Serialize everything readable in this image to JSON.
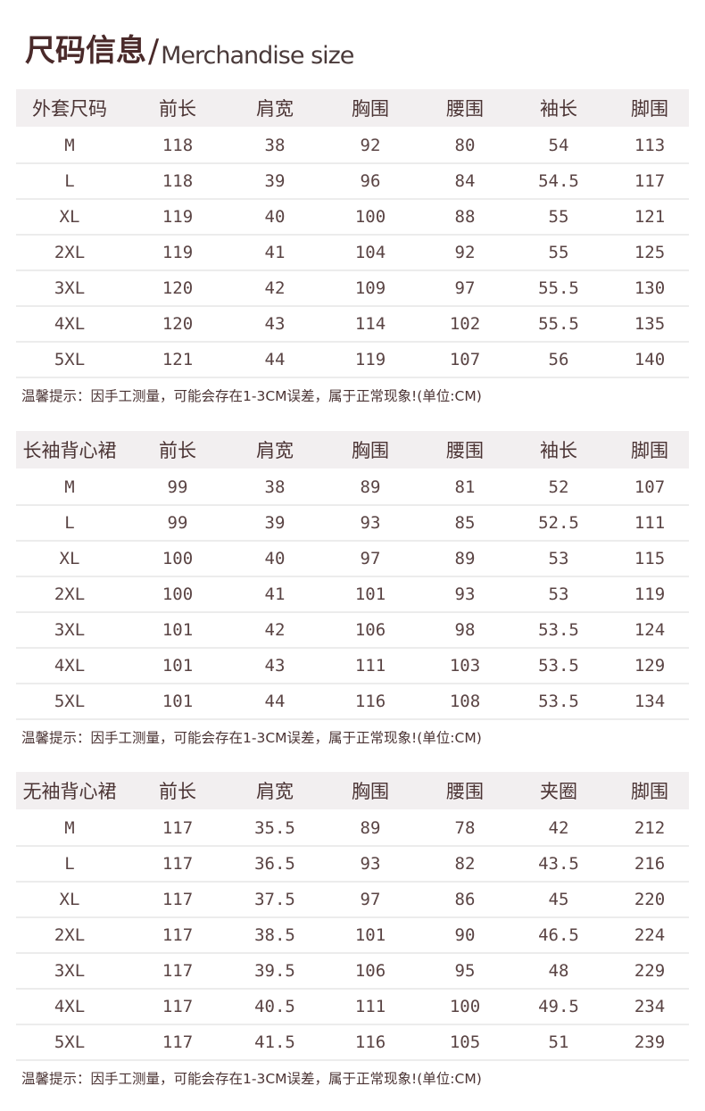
{
  "title": {
    "cn": "尺码信息",
    "slash": "/",
    "en": "Merchandise size"
  },
  "tables": [
    {
      "headers": [
        "外套尺码",
        "前长",
        "肩宽",
        "胸围",
        "腰围",
        "袖长",
        "脚围"
      ],
      "rows": [
        [
          "M",
          "118",
          "38",
          "92",
          "80",
          "54",
          "113"
        ],
        [
          "L",
          "118",
          "39",
          "96",
          "84",
          "54.5",
          "117"
        ],
        [
          "XL",
          "119",
          "40",
          "100",
          "88",
          "55",
          "121"
        ],
        [
          "2XL",
          "119",
          "41",
          "104",
          "92",
          "55",
          "125"
        ],
        [
          "3XL",
          "120",
          "42",
          "109",
          "97",
          "55.5",
          "130"
        ],
        [
          "4XL",
          "120",
          "43",
          "114",
          "102",
          "55.5",
          "135"
        ],
        [
          "5XL",
          "121",
          "44",
          "119",
          "107",
          "56",
          "140"
        ]
      ],
      "note": "温馨提示：因手工测量，可能会存在1-3CM误差，属于正常现象!(单位:CM)"
    },
    {
      "headers": [
        "长袖背心裙",
        "前长",
        "肩宽",
        "胸围",
        "腰围",
        "袖长",
        "脚围"
      ],
      "rows": [
        [
          "M",
          "99",
          "38",
          "89",
          "81",
          "52",
          "107"
        ],
        [
          "L",
          "99",
          "39",
          "93",
          "85",
          "52.5",
          "111"
        ],
        [
          "XL",
          "100",
          "40",
          "97",
          "89",
          "53",
          "115"
        ],
        [
          "2XL",
          "100",
          "41",
          "101",
          "93",
          "53",
          "119"
        ],
        [
          "3XL",
          "101",
          "42",
          "106",
          "98",
          "53.5",
          "124"
        ],
        [
          "4XL",
          "101",
          "43",
          "111",
          "103",
          "53.5",
          "129"
        ],
        [
          "5XL",
          "101",
          "44",
          "116",
          "108",
          "53.5",
          "134"
        ]
      ],
      "note": "温馨提示：因手工测量，可能会存在1-3CM误差，属于正常现象!(单位:CM)"
    },
    {
      "headers": [
        "无袖背心裙",
        "前长",
        "肩宽",
        "胸围",
        "腰围",
        "夹圈",
        "脚围"
      ],
      "rows": [
        [
          "M",
          "117",
          "35.5",
          "89",
          "78",
          "42",
          "212"
        ],
        [
          "L",
          "117",
          "36.5",
          "93",
          "82",
          "43.5",
          "216"
        ],
        [
          "XL",
          "117",
          "37.5",
          "97",
          "86",
          "45",
          "220"
        ],
        [
          "2XL",
          "117",
          "38.5",
          "101",
          "90",
          "46.5",
          "224"
        ],
        [
          "3XL",
          "117",
          "39.5",
          "106",
          "95",
          "48",
          "229"
        ],
        [
          "4XL",
          "117",
          "40.5",
          "111",
          "100",
          "49.5",
          "234"
        ],
        [
          "5XL",
          "117",
          "41.5",
          "116",
          "105",
          "51",
          "239"
        ]
      ],
      "note": "温馨提示：因手工测量，可能会存在1-3CM误差，属于正常现象!(单位:CM)"
    }
  ]
}
